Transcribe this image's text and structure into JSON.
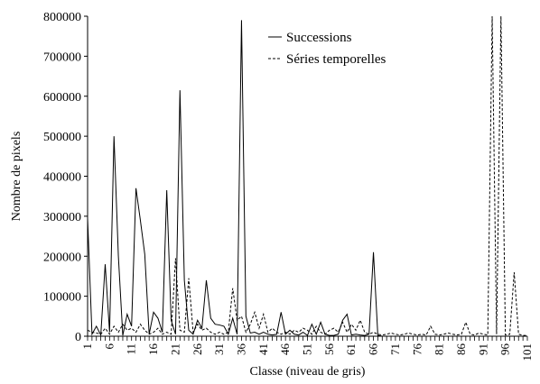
{
  "chart_data": {
    "type": "line",
    "xlabel": "Classe (niveau de gris)",
    "ylabel": "Nombre de pixels",
    "ylim": [
      0,
      800000
    ],
    "xlim": [
      1,
      101
    ],
    "yticks": [
      0,
      100000,
      200000,
      300000,
      400000,
      500000,
      600000,
      700000,
      800000
    ],
    "ytick_labels": [
      "0",
      "100000",
      "200000",
      "300000",
      "400000",
      "500000",
      "600000",
      "700000",
      "800000"
    ],
    "xticks": [
      1,
      6,
      11,
      16,
      21,
      26,
      31,
      36,
      41,
      46,
      51,
      56,
      61,
      66,
      71,
      76,
      81,
      86,
      91,
      96,
      101
    ],
    "xtick_labels": [
      "1",
      "6",
      "11",
      "16",
      "21",
      "26",
      "31",
      "36",
      "41",
      "46",
      "51",
      "56",
      "61",
      "66",
      "71",
      "76",
      "81",
      "86",
      "91",
      "96",
      "101"
    ],
    "grid": false,
    "legend_position": "top-right",
    "series": [
      {
        "name": "Successions",
        "style": "solid",
        "color": "#000000",
        "x": [
          1,
          2,
          3,
          4,
          5,
          6,
          7,
          8,
          9,
          10,
          11,
          12,
          13,
          14,
          15,
          16,
          17,
          18,
          19,
          20,
          21,
          22,
          23,
          24,
          25,
          26,
          27,
          28,
          29,
          30,
          31,
          32,
          33,
          34,
          35,
          36,
          37,
          38,
          39,
          40,
          41,
          42,
          43,
          44,
          45,
          46,
          47,
          48,
          49,
          50,
          51,
          52,
          53,
          54,
          55,
          56,
          57,
          58,
          59,
          60,
          61,
          62,
          63,
          64,
          65,
          66,
          67,
          68,
          69,
          70,
          71,
          72,
          73,
          74,
          75,
          76,
          77,
          78,
          79,
          80,
          81,
          82,
          83,
          84,
          85,
          86,
          87,
          88,
          89,
          90,
          91,
          92,
          93,
          94,
          95,
          96,
          97,
          98,
          99,
          100,
          101
        ],
        "values": [
          295000,
          5000,
          25000,
          3000,
          180000,
          10000,
          500000,
          200000,
          2000,
          55000,
          25000,
          370000,
          290000,
          205000,
          5000,
          60000,
          45000,
          10000,
          365000,
          40000,
          5000,
          615000,
          140000,
          15000,
          5000,
          40000,
          20000,
          140000,
          45000,
          30000,
          28000,
          25000,
          5000,
          45000,
          5000,
          790000,
          50000,
          8000,
          10000,
          5000,
          10000,
          5000,
          3000,
          5000,
          60000,
          5000,
          15000,
          5000,
          3000,
          10000,
          2000,
          30000,
          5000,
          35000,
          5000,
          2000,
          2000,
          5000,
          40000,
          55000,
          3000,
          5000,
          3000,
          2000,
          5000,
          210000,
          2000,
          0,
          0,
          0,
          0,
          0,
          0,
          0,
          0,
          0,
          0,
          0,
          0,
          0,
          0,
          0,
          0,
          0,
          0,
          0,
          0,
          0,
          0,
          0,
          0,
          0,
          0,
          0,
          0,
          0,
          0,
          0,
          0,
          0,
          0
        ]
      },
      {
        "name": "Séries temporelles",
        "style": "dashed",
        "color": "#000000",
        "x": [
          1,
          2,
          3,
          4,
          5,
          6,
          7,
          8,
          9,
          10,
          11,
          12,
          13,
          14,
          15,
          16,
          17,
          18,
          19,
          20,
          21,
          22,
          23,
          24,
          25,
          26,
          27,
          28,
          29,
          30,
          31,
          32,
          33,
          34,
          35,
          36,
          37,
          38,
          39,
          40,
          41,
          42,
          43,
          44,
          45,
          46,
          47,
          48,
          49,
          50,
          51,
          52,
          53,
          54,
          55,
          56,
          57,
          58,
          59,
          60,
          61,
          62,
          63,
          64,
          65,
          66,
          67,
          68,
          69,
          70,
          71,
          72,
          73,
          74,
          75,
          76,
          77,
          78,
          79,
          80,
          81,
          82,
          83,
          84,
          85,
          86,
          87,
          88,
          89,
          90,
          91,
          92,
          93,
          94,
          95,
          96,
          97,
          98,
          99,
          100,
          101
        ],
        "values": [
          15000,
          10000,
          8000,
          5000,
          20000,
          5000,
          25000,
          10000,
          30000,
          15000,
          20000,
          10000,
          30000,
          15000,
          5000,
          10000,
          20000,
          5000,
          10000,
          5000,
          195000,
          15000,
          10000,
          145000,
          10000,
          30000,
          15000,
          20000,
          10000,
          5000,
          10000,
          5000,
          10000,
          120000,
          40000,
          50000,
          10000,
          30000,
          60000,
          20000,
          55000,
          10000,
          20000,
          10000,
          5000,
          10000,
          5000,
          15000,
          10000,
          20000,
          15000,
          5000,
          25000,
          10000,
          5000,
          15000,
          20000,
          10000,
          35000,
          10000,
          30000,
          15000,
          40000,
          10000,
          5000,
          10000,
          5000,
          3000,
          5000,
          8000,
          5000,
          3000,
          5000,
          8000,
          5000,
          3000,
          5000,
          3000,
          25000,
          5000,
          3000,
          5000,
          8000,
          5000,
          3000,
          5000,
          35000,
          5000,
          3000,
          8000,
          5000,
          3000,
          800000,
          5000,
          800000,
          3000,
          5000,
          160000,
          5000,
          2000,
          2000
        ]
      }
    ]
  }
}
